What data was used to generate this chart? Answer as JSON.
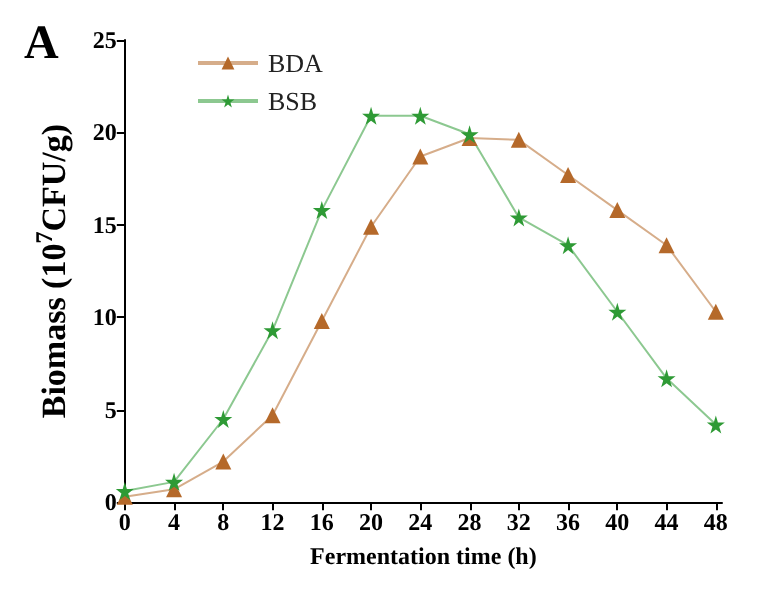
{
  "chart_data": {
    "type": "line",
    "xlabel": "Fermentation time (h)",
    "ylabel": "Biomass (10$^{7}$CFU/g)",
    "annotations": [
      "A"
    ],
    "x": [
      0,
      4,
      8,
      12,
      16,
      20,
      24,
      28,
      32,
      36,
      40,
      44,
      48
    ],
    "series": [
      {
        "name": "BDA",
        "color": "#b5692a",
        "marker": "triangle",
        "values": [
          0.3,
          0.7,
          2.2,
          4.7,
          9.8,
          14.9,
          18.7,
          19.7,
          19.6,
          17.7,
          15.8,
          13.9,
          10.3
        ]
      },
      {
        "name": "BSB",
        "color": "#2e9a35",
        "marker": "star",
        "values": [
          0.6,
          1.1,
          4.5,
          9.3,
          15.8,
          20.9,
          20.9,
          19.9,
          15.4,
          13.9,
          10.3,
          6.7,
          4.2
        ]
      }
    ],
    "xlim": [
      0,
      48.5
    ],
    "xticks": [
      0,
      4,
      8,
      12,
      16,
      20,
      24,
      28,
      32,
      36,
      40,
      44,
      48
    ],
    "ylim": [
      0,
      25
    ],
    "yticks": [
      0,
      5,
      10,
      15,
      20,
      25
    ],
    "grid": false,
    "legend": "top left"
  }
}
